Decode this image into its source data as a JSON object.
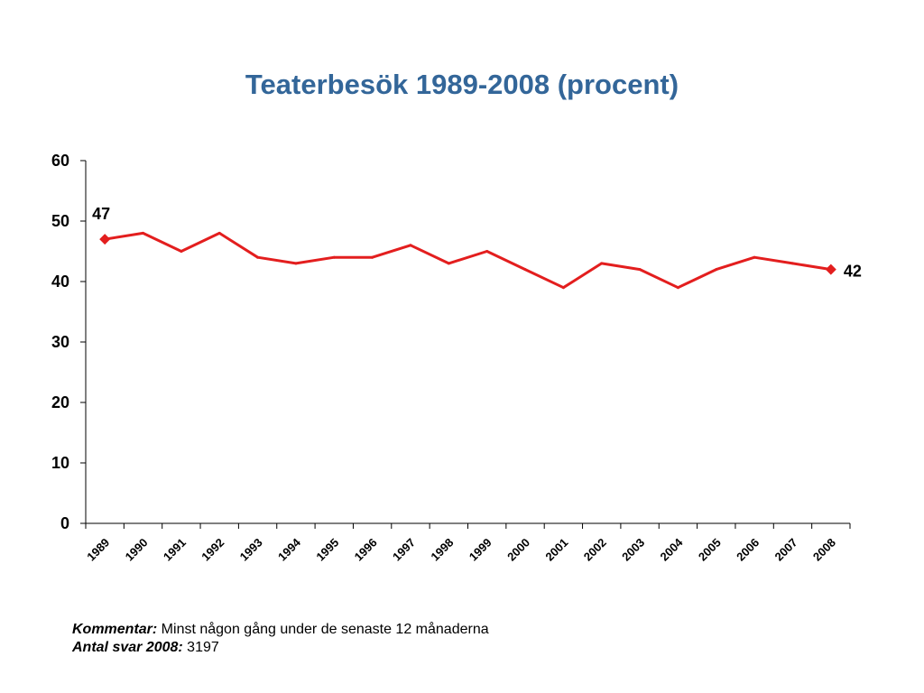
{
  "title": "Teaterbesök 1989-2008 (procent)",
  "chart_data": {
    "type": "line",
    "title": "Teaterbesök 1989-2008 (procent)",
    "xlabel": "",
    "ylabel": "",
    "x": [
      "1989",
      "1990",
      "1991",
      "1992",
      "1993",
      "1994",
      "1995",
      "1996",
      "1997",
      "1998",
      "1999",
      "2000",
      "2001",
      "2002",
      "2003",
      "2004",
      "2005",
      "2006",
      "2007",
      "2008"
    ],
    "series": [
      {
        "values": [
          47,
          48,
          45,
          48,
          44,
          43,
          44,
          44,
          46,
          43,
          45,
          42,
          39,
          43,
          42,
          39,
          42,
          44,
          43,
          42
        ]
      }
    ],
    "ylim": [
      0,
      60
    ],
    "yticks": [
      0,
      10,
      20,
      30,
      40,
      50,
      60
    ],
    "data_labels": [
      {
        "index": 0,
        "text": "47"
      },
      {
        "index": 19,
        "text": "42"
      }
    ],
    "grid": false,
    "legend": "none",
    "line_color": "#e31e1e",
    "marker_color": "#e31e1e"
  },
  "footnote": {
    "kommentar_label": "Kommentar:",
    "kommentar_text": " Minst någon gång under de senaste 12 månaderna",
    "antal_label": "Antal svar 2008:",
    "antal_text": " 3197"
  }
}
